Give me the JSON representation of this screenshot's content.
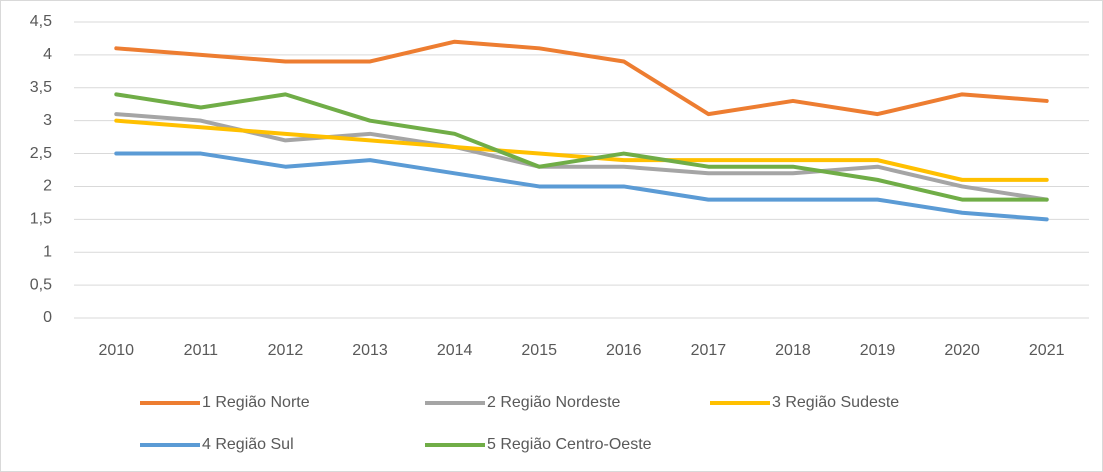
{
  "chart_data": {
    "type": "line",
    "categories": [
      "2010",
      "2011",
      "2012",
      "2013",
      "2014",
      "2015",
      "2016",
      "2017",
      "2018",
      "2019",
      "2020",
      "2021"
    ],
    "series": [
      {
        "name": "1 Região Norte",
        "color": "#ed7d31",
        "values": [
          4.1,
          4.0,
          3.9,
          3.9,
          4.2,
          4.1,
          3.9,
          3.1,
          3.3,
          3.1,
          3.4,
          3.3
        ]
      },
      {
        "name": "2 Região Nordeste",
        "color": "#a5a5a5",
        "values": [
          3.1,
          3.0,
          2.7,
          2.8,
          2.6,
          2.3,
          2.3,
          2.2,
          2.2,
          2.3,
          2.0,
          1.8
        ]
      },
      {
        "name": "3 Região Sudeste",
        "color": "#ffc000",
        "values": [
          3.0,
          2.9,
          2.8,
          2.7,
          2.6,
          2.5,
          2.4,
          2.4,
          2.4,
          2.4,
          2.1,
          2.1
        ]
      },
      {
        "name": "4 Região Sul",
        "color": "#5b9bd5",
        "values": [
          2.5,
          2.5,
          2.3,
          2.4,
          2.2,
          2.0,
          2.0,
          1.8,
          1.8,
          1.8,
          1.6,
          1.5
        ]
      },
      {
        "name": "5 Região Centro-Oeste",
        "color": "#70ad47",
        "values": [
          3.4,
          3.2,
          3.4,
          3.0,
          2.8,
          2.3,
          2.5,
          2.3,
          2.3,
          2.1,
          1.8,
          1.8
        ]
      }
    ],
    "ylim": [
      0,
      4.5
    ],
    "yticks": [
      0,
      {
        "value": 0.5,
        "label": "0,5"
      },
      1,
      {
        "value": 1.5,
        "label": "1,5"
      },
      2,
      {
        "value": 2.5,
        "label": "2,5"
      },
      3,
      {
        "value": 3.5,
        "label": "3,5"
      },
      4,
      {
        "value": 4.5,
        "label": "4,5"
      }
    ],
    "grid": true,
    "legend": "bottom"
  }
}
